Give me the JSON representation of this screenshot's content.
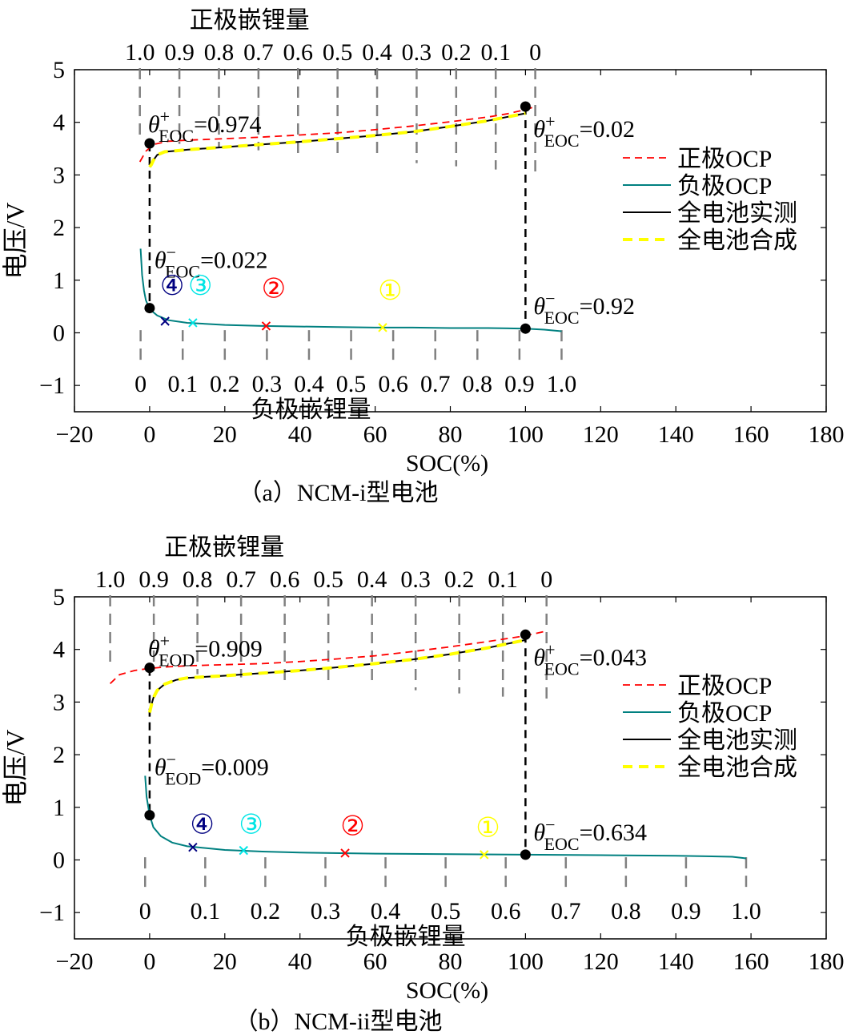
{
  "chart_data": [
    {
      "panel": "a",
      "type": "line",
      "caption": "（a）NCM-i型电池",
      "xlabel": "SOC(%)",
      "ylabel": "电压/V",
      "xlim": [
        -20,
        180
      ],
      "ylim": [
        -1.5,
        5
      ],
      "xticks": [
        -20,
        0,
        20,
        40,
        60,
        80,
        100,
        120,
        140,
        160,
        180
      ],
      "yticks": [
        -1,
        0,
        1,
        2,
        3,
        4,
        5
      ],
      "top_axis": {
        "title": "正极嵌锂量",
        "labels": [
          "1.0",
          "0.9",
          "0.8",
          "0.7",
          "0.6",
          "0.5",
          "0.4",
          "0.3",
          "0.2",
          "0.1",
          "0"
        ],
        "soc_at_1": -2.6,
        "soc_at_0": 102.6
      },
      "bottom_axis": {
        "title": "负极嵌锂量",
        "labels": [
          "0",
          "0.1",
          "0.2",
          "0.3",
          "0.4",
          "0.5",
          "0.6",
          "0.7",
          "0.8",
          "0.9",
          "1.0"
        ],
        "soc_at_0": -2.4,
        "soc_at_1": 109.6
      },
      "legend": {
        "position": "right",
        "items": [
          {
            "label": "正极OCP",
            "color": "#ff0000",
            "style": "dashed"
          },
          {
            "label": "负极OCP",
            "color": "#008080",
            "style": "solid"
          },
          {
            "label": "全电池实测",
            "color": "#000000",
            "style": "solid"
          },
          {
            "label": "全电池合成",
            "color": "#ffff00",
            "style": "thick-dashed"
          }
        ]
      },
      "series": [
        {
          "name": "正极OCP",
          "color": "#ff0000",
          "x": [
            -2.6,
            -1,
            1,
            5,
            10,
            20,
            30,
            40,
            50,
            60,
            70,
            80,
            90,
            95,
            100,
            102.6
          ],
          "y": [
            3.25,
            3.45,
            3.58,
            3.64,
            3.66,
            3.69,
            3.72,
            3.76,
            3.8,
            3.86,
            3.93,
            4.01,
            4.1,
            4.16,
            4.24,
            4.3
          ]
        },
        {
          "name": "负极OCP",
          "color": "#008080",
          "x": [
            -2.4,
            -2,
            -1.5,
            -1,
            0,
            2,
            5,
            10,
            20,
            30,
            40,
            50,
            60,
            70,
            80,
            90,
            100,
            105,
            109.6
          ],
          "y": [
            1.6,
            1.1,
            0.8,
            0.62,
            0.45,
            0.33,
            0.24,
            0.19,
            0.15,
            0.13,
            0.12,
            0.11,
            0.1,
            0.1,
            0.09,
            0.09,
            0.08,
            0.06,
            0.03
          ]
        },
        {
          "name": "全电池实测",
          "color": "#000000",
          "x": [
            0,
            0.5,
            1,
            2,
            4,
            7,
            10,
            20,
            30,
            40,
            50,
            60,
            70,
            80,
            90,
            100
          ],
          "y": [
            3.15,
            3.2,
            3.28,
            3.38,
            3.44,
            3.46,
            3.48,
            3.53,
            3.58,
            3.63,
            3.69,
            3.75,
            3.82,
            3.92,
            4.03,
            4.17
          ]
        },
        {
          "name": "全电池合成",
          "color": "#ffff00",
          "x": [
            0,
            0.5,
            1,
            2,
            4,
            7,
            10,
            20,
            30,
            40,
            50,
            60,
            70,
            80,
            90,
            100
          ],
          "y": [
            3.15,
            3.2,
            3.28,
            3.38,
            3.44,
            3.46,
            3.48,
            3.53,
            3.58,
            3.63,
            3.69,
            3.75,
            3.82,
            3.92,
            4.03,
            4.17
          ]
        }
      ],
      "key_points": [
        {
          "x": 0,
          "y": 3.6,
          "label": "θ+EOC=0.974",
          "sym": "θ",
          "sup": "+",
          "sub": "EOC",
          "val": "=0.974",
          "anchor": "above"
        },
        {
          "x": 100,
          "y": 4.3,
          "label": "θ+EOC=0.02",
          "sym": "θ",
          "sup": "+",
          "sub": "EOC",
          "val": "=0.02",
          "anchor": "below-right"
        },
        {
          "x": 0,
          "y": 0.47,
          "label": "θ−EOC=0.022",
          "sym": "θ",
          "sup": "−",
          "sub": "EOC",
          "val": "=0.022",
          "anchor": "above-high"
        },
        {
          "x": 100,
          "y": 0.08,
          "label": "θ−EOC=0.92",
          "sym": "θ",
          "sup": "−",
          "sub": "EOC",
          "val": "=0.92",
          "anchor": "above-right"
        }
      ],
      "markers": [
        {
          "label": "④",
          "color": "#000080",
          "x": 4.1,
          "y": 0.22,
          "lx": 6,
          "ly": 0.72
        },
        {
          "label": "③",
          "color": "#00e5e5",
          "x": 11.5,
          "y": 0.19,
          "lx": 13.5,
          "ly": 0.72
        },
        {
          "label": "②",
          "color": "#ff0000",
          "x": 31,
          "y": 0.13,
          "lx": 33,
          "ly": 0.67
        },
        {
          "label": "①",
          "color": "#ffff00",
          "x": 62,
          "y": 0.1,
          "lx": 64,
          "ly": 0.63
        }
      ]
    },
    {
      "panel": "b",
      "type": "line",
      "caption": "（b）NCM-ii型电池",
      "xlabel": "SOC(%)",
      "ylabel": "电压/V",
      "xlim": [
        -20,
        180
      ],
      "ylim": [
        -1.5,
        5
      ],
      "xticks": [
        -20,
        0,
        20,
        40,
        60,
        80,
        100,
        120,
        140,
        160,
        180
      ],
      "yticks": [
        -1,
        0,
        1,
        2,
        3,
        4,
        5
      ],
      "top_axis": {
        "title": "正极嵌锂量",
        "labels": [
          "1.0",
          "0.9",
          "0.8",
          "0.7",
          "0.6",
          "0.5",
          "0.4",
          "0.3",
          "0.2",
          "0.1",
          "0"
        ],
        "soc_at_1": -10.5,
        "soc_at_0": 105.6
      },
      "bottom_axis": {
        "title": "负极嵌锂量",
        "labels": [
          "0",
          "0.1",
          "0.2",
          "0.3",
          "0.4",
          "0.5",
          "0.6",
          "0.7",
          "0.8",
          "0.9",
          "1.0"
        ],
        "soc_at_0": -1.2,
        "soc_at_1": 158.7
      },
      "legend": {
        "position": "right",
        "items": [
          {
            "label": "正极OCP",
            "color": "#ff0000",
            "style": "dashed"
          },
          {
            "label": "负极OCP",
            "color": "#008080",
            "style": "solid"
          },
          {
            "label": "全电池实测",
            "color": "#000000",
            "style": "solid"
          },
          {
            "label": "全电池合成",
            "color": "#ffff00",
            "style": "thick-dashed"
          }
        ]
      },
      "series": [
        {
          "name": "正极OCP",
          "color": "#ff0000",
          "x": [
            -10.5,
            -8,
            -4,
            0,
            5,
            10,
            20,
            30,
            40,
            50,
            60,
            70,
            80,
            90,
            100,
            105.6
          ],
          "y": [
            3.35,
            3.52,
            3.6,
            3.64,
            3.67,
            3.69,
            3.71,
            3.73,
            3.77,
            3.82,
            3.88,
            3.96,
            4.05,
            4.15,
            4.26,
            4.35
          ]
        },
        {
          "name": "负极OCP",
          "color": "#008080",
          "x": [
            -1.2,
            -0.8,
            0,
            1,
            3,
            6,
            10,
            20,
            30,
            40,
            60,
            80,
            100,
            120,
            140,
            155,
            158.7
          ],
          "y": [
            1.6,
            1.2,
            0.85,
            0.62,
            0.45,
            0.33,
            0.26,
            0.19,
            0.16,
            0.14,
            0.12,
            0.11,
            0.1,
            0.09,
            0.08,
            0.06,
            0.03
          ]
        },
        {
          "name": "全电池实测",
          "color": "#000000",
          "x": [
            0,
            0.5,
            1,
            2,
            4,
            7,
            10,
            20,
            30,
            40,
            50,
            60,
            70,
            80,
            90,
            100
          ],
          "y": [
            2.8,
            2.95,
            3.08,
            3.22,
            3.34,
            3.42,
            3.46,
            3.5,
            3.55,
            3.6,
            3.66,
            3.73,
            3.81,
            3.91,
            4.03,
            4.18
          ]
        },
        {
          "name": "全电池合成",
          "color": "#ffff00",
          "x": [
            0,
            0.5,
            1,
            2,
            4,
            7,
            10,
            20,
            30,
            40,
            50,
            60,
            70,
            80,
            90,
            100
          ],
          "y": [
            2.8,
            2.95,
            3.08,
            3.22,
            3.34,
            3.42,
            3.46,
            3.5,
            3.55,
            3.6,
            3.66,
            3.73,
            3.81,
            3.91,
            4.03,
            4.18
          ]
        }
      ],
      "key_points": [
        {
          "x": 0,
          "y": 3.65,
          "label": "θ+EOD=0.909",
          "sym": "θ",
          "sup": "+",
          "sub": "EOD",
          "val": "=0.909",
          "anchor": "above"
        },
        {
          "x": 100,
          "y": 4.28,
          "label": "θ+EOC=0.043",
          "sym": "θ",
          "sup": "+",
          "sub": "EOC",
          "val": "=0.043",
          "anchor": "below-right"
        },
        {
          "x": 0,
          "y": 0.85,
          "label": "θ−EOD=0.009",
          "sym": "θ",
          "sup": "−",
          "sub": "EOD",
          "val": "=0.009",
          "anchor": "above-high"
        },
        {
          "x": 100,
          "y": 0.1,
          "label": "θ−EOC=0.634",
          "sym": "θ",
          "sup": "−",
          "sub": "EOC",
          "val": "=0.634",
          "anchor": "above-right"
        }
      ],
      "markers": [
        {
          "label": "④",
          "color": "#000080",
          "x": 11.5,
          "y": 0.24,
          "lx": 14,
          "ly": 0.5
        },
        {
          "label": "③",
          "color": "#00e5e5",
          "x": 25,
          "y": 0.18,
          "lx": 27,
          "ly": 0.5
        },
        {
          "label": "②",
          "color": "#ff0000",
          "x": 52,
          "y": 0.13,
          "lx": 54,
          "ly": 0.47
        },
        {
          "label": "①",
          "color": "#ffff00",
          "x": 89,
          "y": 0.1,
          "lx": 90,
          "ly": 0.44
        }
      ]
    }
  ]
}
